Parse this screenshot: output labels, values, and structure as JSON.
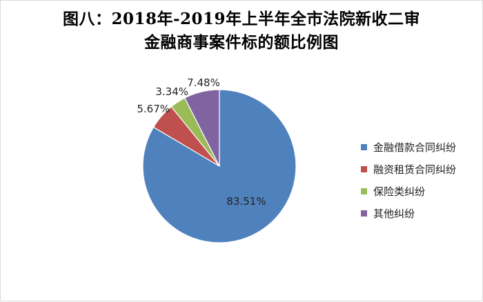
{
  "chart_data": {
    "type": "pie",
    "title_lines": [
      "图八：2018年-2019年上半年全市法院新收二审",
      "金融商事案件标的额比例图"
    ],
    "categories": [
      "金融借款合同纠纷",
      "融资租赁合同纠纷",
      "保险类纠纷",
      "其他纠纷"
    ],
    "values": [
      83.51,
      5.67,
      3.34,
      7.48
    ],
    "value_labels": [
      "83.51%",
      "5.67%",
      "3.34%",
      "7.48%"
    ],
    "colors": [
      "#4F81BD",
      "#C0504D",
      "#9BBB59",
      "#8064A2"
    ],
    "legend": "right",
    "start": "12 o'clock, clockwise"
  }
}
